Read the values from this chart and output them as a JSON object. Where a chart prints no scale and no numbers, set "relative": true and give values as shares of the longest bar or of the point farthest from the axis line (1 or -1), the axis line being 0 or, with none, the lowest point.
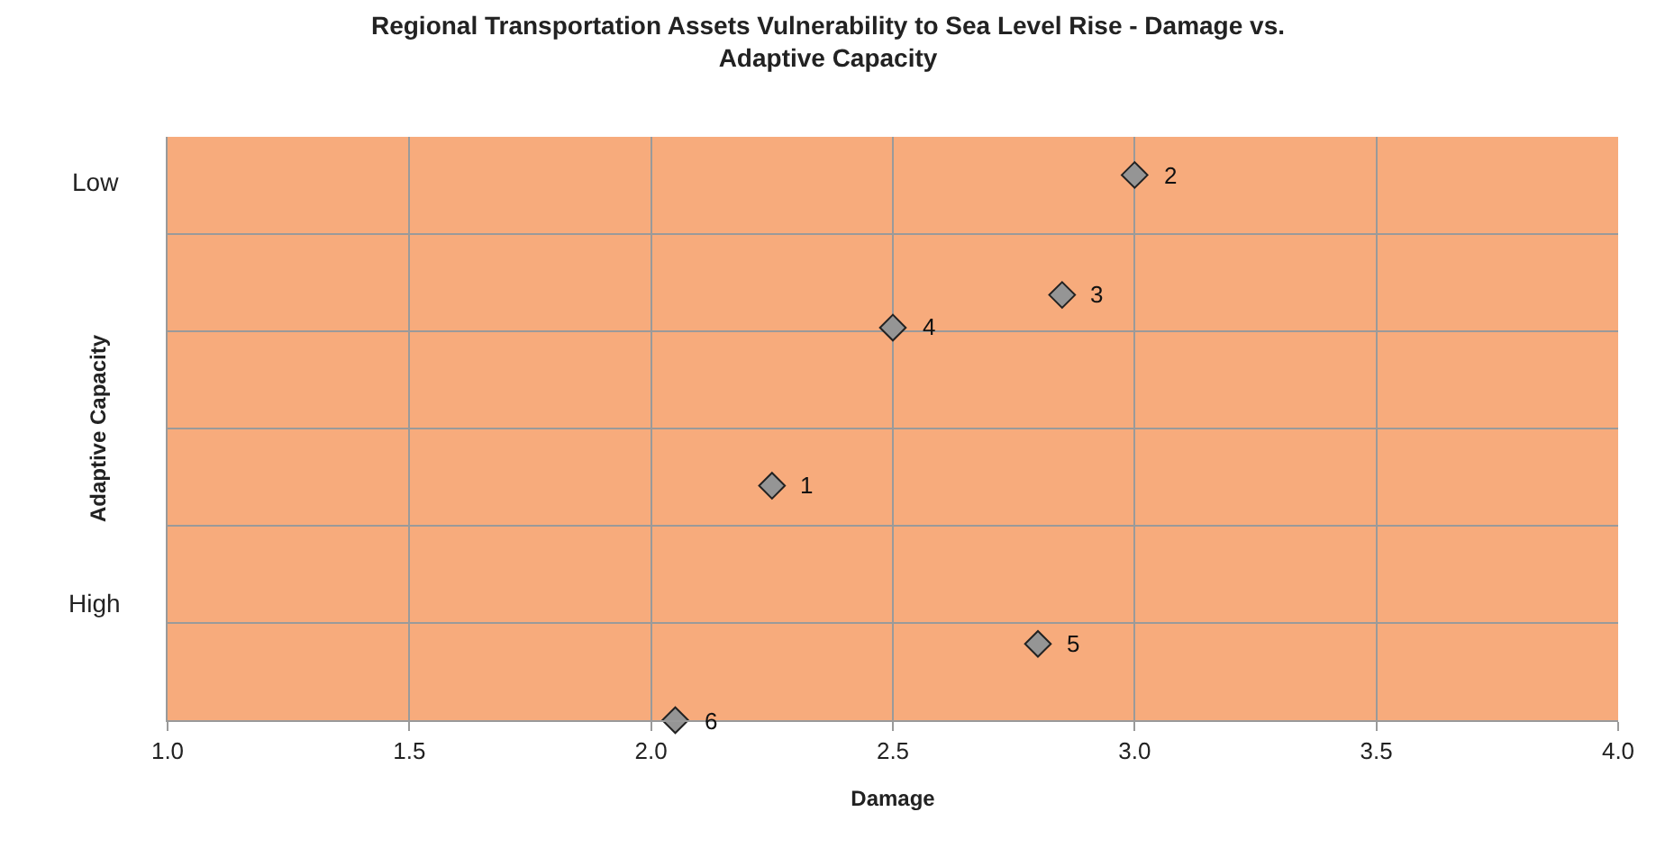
{
  "chart_data": {
    "type": "scatter",
    "title": "Regional Transportation Assets Vulnerability to Sea Level Rise - Damage vs. Adaptive Capacity",
    "xlabel": "Damage",
    "ylabel": "Adaptive Capacity",
    "annotations": [
      "Low",
      "High",
      {
        "text": "1",
        "x": 2.25,
        "y": 0.43
      },
      {
        "text": "2",
        "x": 3.0,
        "y": 1
      },
      {
        "text": "3",
        "x": 2.85,
        "y": 0.78
      },
      {
        "text": "4",
        "x": 2.5,
        "y": 0.72
      },
      {
        "text": "5",
        "x": 2.8,
        "y": 0.14
      },
      {
        "text": "6",
        "x": 2.05,
        "y": 0
      }
    ],
    "relative": true,
    "xlim": [
      1.0,
      4.0
    ],
    "xticks": [
      {
        "value": 1.0,
        "label": "1.0"
      },
      {
        "value": 1.5,
        "label": "1.5"
      },
      {
        "value": 2.0,
        "label": "2.0"
      },
      {
        "value": 2.5,
        "label": "2.5"
      },
      {
        "value": 3.0,
        "label": "3.0"
      },
      {
        "value": 3.5,
        "label": "3.5"
      },
      {
        "value": 4.0,
        "label": "4.0"
      }
    ],
    "tick_labels": "x",
    "grid": true,
    "marker": "diamond",
    "series": [
      {
        "color": "#959595",
        "x": [
          2.25,
          3.0,
          2.85,
          2.5,
          2.8,
          2.05
        ],
        "values": [
          0.43,
          1,
          0.78,
          0.72,
          0.14,
          0
        ]
      }
    ]
  }
}
